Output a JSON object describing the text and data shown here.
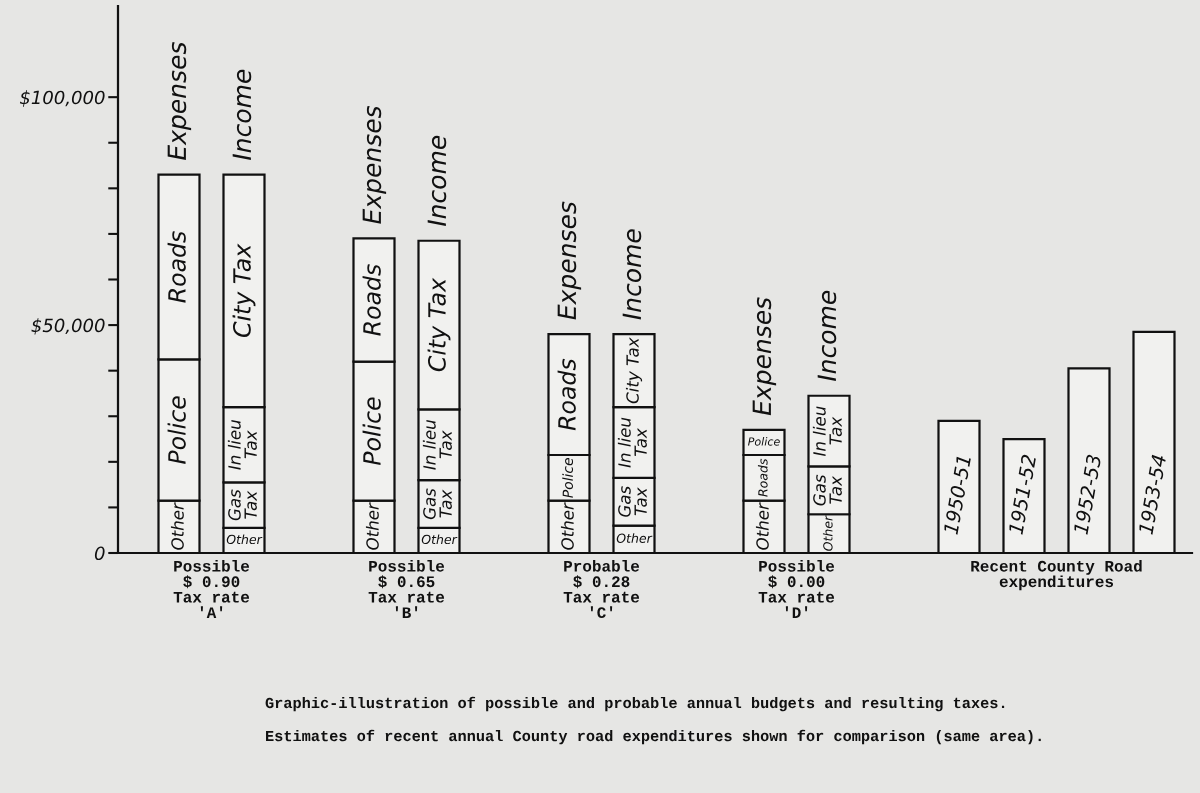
{
  "chart_data": {
    "type": "bar",
    "stacked": true,
    "categories": [
      "Expenses",
      "Income",
      null,
      "Expenses",
      "Income",
      null,
      "Expenses",
      "Income",
      null,
      "Expenses",
      "Income",
      null,
      "1950-51",
      "1951-52",
      "1952-53",
      "1953-54"
    ],
    "ylim": [
      0,
      120000
    ],
    "yticks": [
      0,
      {
        "value": 10000,
        "label": null
      },
      {
        "value": 20000,
        "label": null
      },
      {
        "value": 30000,
        "label": null
      },
      {
        "value": 40000,
        "label": null
      },
      {
        "value": 50000,
        "label": "$50,000"
      },
      {
        "value": 60000,
        "label": null
      },
      {
        "value": 70000,
        "label": null
      },
      {
        "value": 80000,
        "label": null
      },
      {
        "value": 90000,
        "label": null
      },
      {
        "value": 100000,
        "label": "$100,000"
      }
    ],
    "series": [
      {
        "name": "Other",
        "color": "#f1f1ef",
        "values": [
          11500,
          null,
          null,
          11500,
          null,
          null,
          11500,
          null,
          null,
          11500,
          null,
          null,
          null,
          null,
          null,
          null
        ]
      },
      {
        "name": "Police",
        "color": "#f1f1ef",
        "values": [
          31000,
          null,
          null,
          30500,
          null,
          null,
          10000,
          null,
          null,
          null,
          null,
          null,
          null,
          null,
          null,
          null
        ]
      },
      {
        "name": "Roads",
        "color": "#f1f1ef",
        "values": [
          40500,
          null,
          null,
          27000,
          null,
          null,
          26500,
          null,
          null,
          10000,
          null,
          null,
          null,
          null,
          null,
          null
        ]
      },
      {
        "name": "Police",
        "color": "#f1f1ef",
        "values": [
          null,
          null,
          null,
          null,
          null,
          null,
          null,
          null,
          null,
          5500,
          null,
          null,
          null,
          null,
          null,
          null
        ]
      },
      {
        "name": "Other",
        "color": "#f1f1ef",
        "values": [
          null,
          5500,
          null,
          null,
          5500,
          null,
          null,
          6000,
          null,
          null,
          8500,
          null,
          null,
          null,
          null,
          null
        ]
      },
      {
        "name": "Gas Tax",
        "color": "#f1f1ef",
        "values": [
          null,
          10000,
          null,
          null,
          10500,
          null,
          null,
          10500,
          null,
          null,
          10500,
          null,
          null,
          null,
          null,
          null
        ]
      },
      {
        "name": "In lieu Tax",
        "color": "#f1f1ef",
        "values": [
          null,
          16500,
          null,
          null,
          15500,
          null,
          null,
          15500,
          null,
          null,
          15500,
          null,
          null,
          null,
          null,
          null
        ]
      },
      {
        "name": "City Tax",
        "color": "#f1f1ef",
        "values": [
          null,
          51000,
          null,
          null,
          37000,
          null,
          null,
          16000,
          null,
          null,
          null,
          null,
          null,
          null,
          null,
          null
        ]
      },
      {
        "color": "#f1f1ef",
        "values": [
          null,
          null,
          null,
          null,
          null,
          null,
          null,
          null,
          null,
          null,
          null,
          null,
          29000,
          25000,
          40500,
          48500
        ]
      }
    ],
    "annotations": [
      "Possible\n$ 0.90\nTax rate\n'A'",
      "Possible\n$ 0.65\nTax rate\n'B'",
      "Probable\n$ 0.28\nTax rate\n'C'",
      "Possible\n$ 0.00\nTax rate\n'D'",
      "Recent County Road\nexpenditures",
      "Graphic-illustration of possible and probable annual budgets and resulting taxes.",
      "Estimates of recent annual County road expenditures shown for comparison (same area)."
    ]
  }
}
